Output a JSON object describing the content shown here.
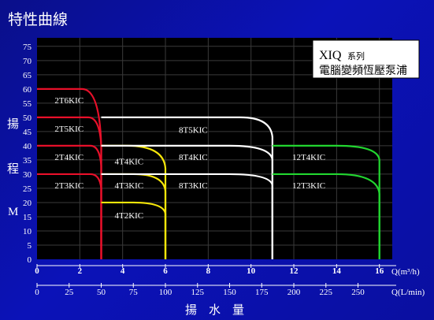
{
  "slide": {
    "title": "特性曲線"
  },
  "legend": {
    "model": "XIQ",
    "model_suffix": "系列",
    "subtitle": "電腦變頻恆壓泵浦"
  },
  "chart_data": {
    "type": "line",
    "ylabel_chars": [
      "揚",
      "程",
      "M"
    ],
    "xlabel_chars": [
      "揚",
      "水",
      "量"
    ],
    "x_unit_top": "Q(m³/h)",
    "x_unit_bottom": "Q(L/min)",
    "x_range": [
      0,
      16
    ],
    "y_range": [
      0,
      78
    ],
    "y_ticks": [
      0,
      5,
      10,
      15,
      20,
      25,
      30,
      35,
      40,
      45,
      50,
      55,
      60,
      65,
      70,
      75
    ],
    "x_ticks_m3h": [
      0,
      2,
      4,
      6,
      8,
      10,
      12,
      14,
      16
    ],
    "x_ticks_lmin": [
      0,
      25,
      50,
      75,
      100,
      125,
      150,
      175,
      200,
      225,
      250
    ],
    "grid": true,
    "series": [
      {
        "name": "2T6KIC",
        "color": "#e8102a",
        "flat_end": 2.1,
        "head": 60,
        "max_q": 3.0,
        "end_head": 40,
        "label_pos": [
          1.5,
          55
        ]
      },
      {
        "name": "2T5KIC",
        "color": "#e8102a",
        "flat_end": 2.4,
        "head": 50,
        "max_q": 3.0,
        "end_head": 40,
        "label_pos": [
          1.5,
          45
        ]
      },
      {
        "name": "2T4KIC",
        "color": "#e8102a",
        "flat_end": 2.5,
        "head": 40,
        "max_q": 3.0,
        "end_head": 33,
        "label_pos": [
          1.5,
          35
        ]
      },
      {
        "name": "2T3KIC",
        "color": "#e8102a",
        "flat_end": 2.5,
        "head": 30,
        "max_q": 3.0,
        "end_head": 25,
        "label_pos": [
          1.5,
          25
        ]
      },
      {
        "name": "4T4KIC",
        "color": "#f5e60a",
        "flat_start": 3.0,
        "flat_end": 4.2,
        "head": 40,
        "max_q": 6.0,
        "end_head": 32,
        "label_pos": [
          4.3,
          33.5
        ]
      },
      {
        "name": "4T3KIC",
        "color": "#f5e60a",
        "flat_start": 3.0,
        "flat_end": 4.5,
        "head": 30,
        "max_q": 6.0,
        "end_head": 24,
        "label_pos": [
          4.3,
          25
        ]
      },
      {
        "name": "4T2KIC",
        "color": "#f5e60a",
        "flat_start": 3.0,
        "flat_end": 4.5,
        "head": 20,
        "max_q": 6.0,
        "end_head": 16,
        "label_pos": [
          4.3,
          14.5
        ]
      },
      {
        "name": "8T5KIC",
        "color": "#ffffff",
        "flat_start": 3.0,
        "flat_end": 9.5,
        "head": 50,
        "max_q": 11.0,
        "end_head": 43,
        "label_pos": [
          7.3,
          44.5
        ]
      },
      {
        "name": "8T4KIC",
        "color": "#ffffff",
        "flat_start": 3.0,
        "flat_end": 9.0,
        "head": 40,
        "max_q": 11.0,
        "end_head": 35,
        "label_pos": [
          7.3,
          35
        ]
      },
      {
        "name": "8T3KIC",
        "color": "#ffffff",
        "flat_start": 3.0,
        "flat_end": 9.0,
        "head": 30,
        "max_q": 11.0,
        "end_head": 26,
        "label_pos": [
          7.3,
          25
        ]
      },
      {
        "name": "12T4KIC",
        "color": "#22d630",
        "flat_start": 11.0,
        "flat_end": 14.0,
        "head": 40,
        "max_q": 16.0,
        "end_head": 35,
        "label_pos": [
          12.7,
          35
        ]
      },
      {
        "name": "12T3KIC",
        "color": "#22d630",
        "flat_start": 11.0,
        "flat_end": 14.0,
        "head": 30,
        "max_q": 16.0,
        "end_head": 23,
        "label_pos": [
          12.7,
          25
        ]
      }
    ]
  }
}
